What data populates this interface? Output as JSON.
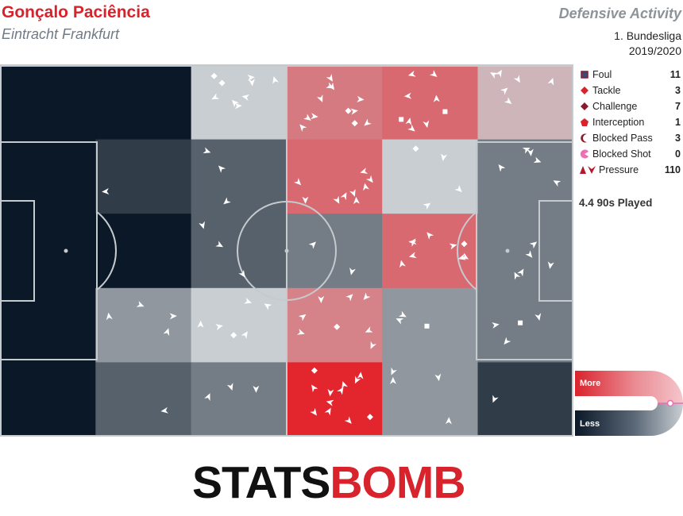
{
  "header": {
    "player": "Gonçalo Paciência",
    "team": "Eintracht Frankfurt",
    "title": "Defensive Activity",
    "competition": "1. Bundesliga",
    "season": "2019/2020"
  },
  "legend": [
    {
      "label": "Foul",
      "count": "11",
      "icon": "square-icon",
      "color": "#8b1a2b"
    },
    {
      "label": "Tackle",
      "count": "3",
      "icon": "diamond-icon",
      "color": "#d9232c"
    },
    {
      "label": "Challenge",
      "count": "7",
      "icon": "diamond-icon",
      "color": "#8b1a2b"
    },
    {
      "label": "Interception",
      "count": "1",
      "icon": "pentagon-icon",
      "color": "#d9232c"
    },
    {
      "label": "Blocked Pass",
      "count": "3",
      "icon": "crescent-icon",
      "color": "#8b1a2b"
    },
    {
      "label": "Blocked Shot",
      "count": "0",
      "icon": "pacman-icon",
      "color": "#f06cb4"
    },
    {
      "label": "Pressure",
      "count": "110",
      "icon": "pressure-icon",
      "color": "#b01c2e"
    }
  ],
  "matches_played": "4.4 90s Played",
  "scale": {
    "more": "More",
    "less": "Less"
  },
  "colors": {
    "low": "#0b1827",
    "mid": "#c9ced3",
    "high": "#e3262e",
    "pitch_line": "#c5cace",
    "marker": "#ffffff"
  },
  "heatmap": {
    "columns": 6,
    "rows": 5,
    "note_levels": "intensity -1 (darkest navy, less) .. 0 (neutral grey) .. 1 (strongest red, more)",
    "levels": [
      [
        -1.0,
        -1.0,
        0.0,
        0.5,
        0.6,
        0.15
      ],
      [
        -1.0,
        -0.8,
        -0.6,
        0.6,
        0.0,
        -0.45
      ],
      [
        -1.0,
        -1.0,
        -0.6,
        -0.45,
        0.6,
        -0.45
      ],
      [
        -1.0,
        -0.3,
        0.0,
        0.45,
        -0.3,
        -0.45
      ],
      [
        -1.0,
        -0.6,
        -0.45,
        1.0,
        -0.3,
        -0.8
      ]
    ]
  },
  "brand": {
    "left": "STATS",
    "right": "BOMB"
  }
}
